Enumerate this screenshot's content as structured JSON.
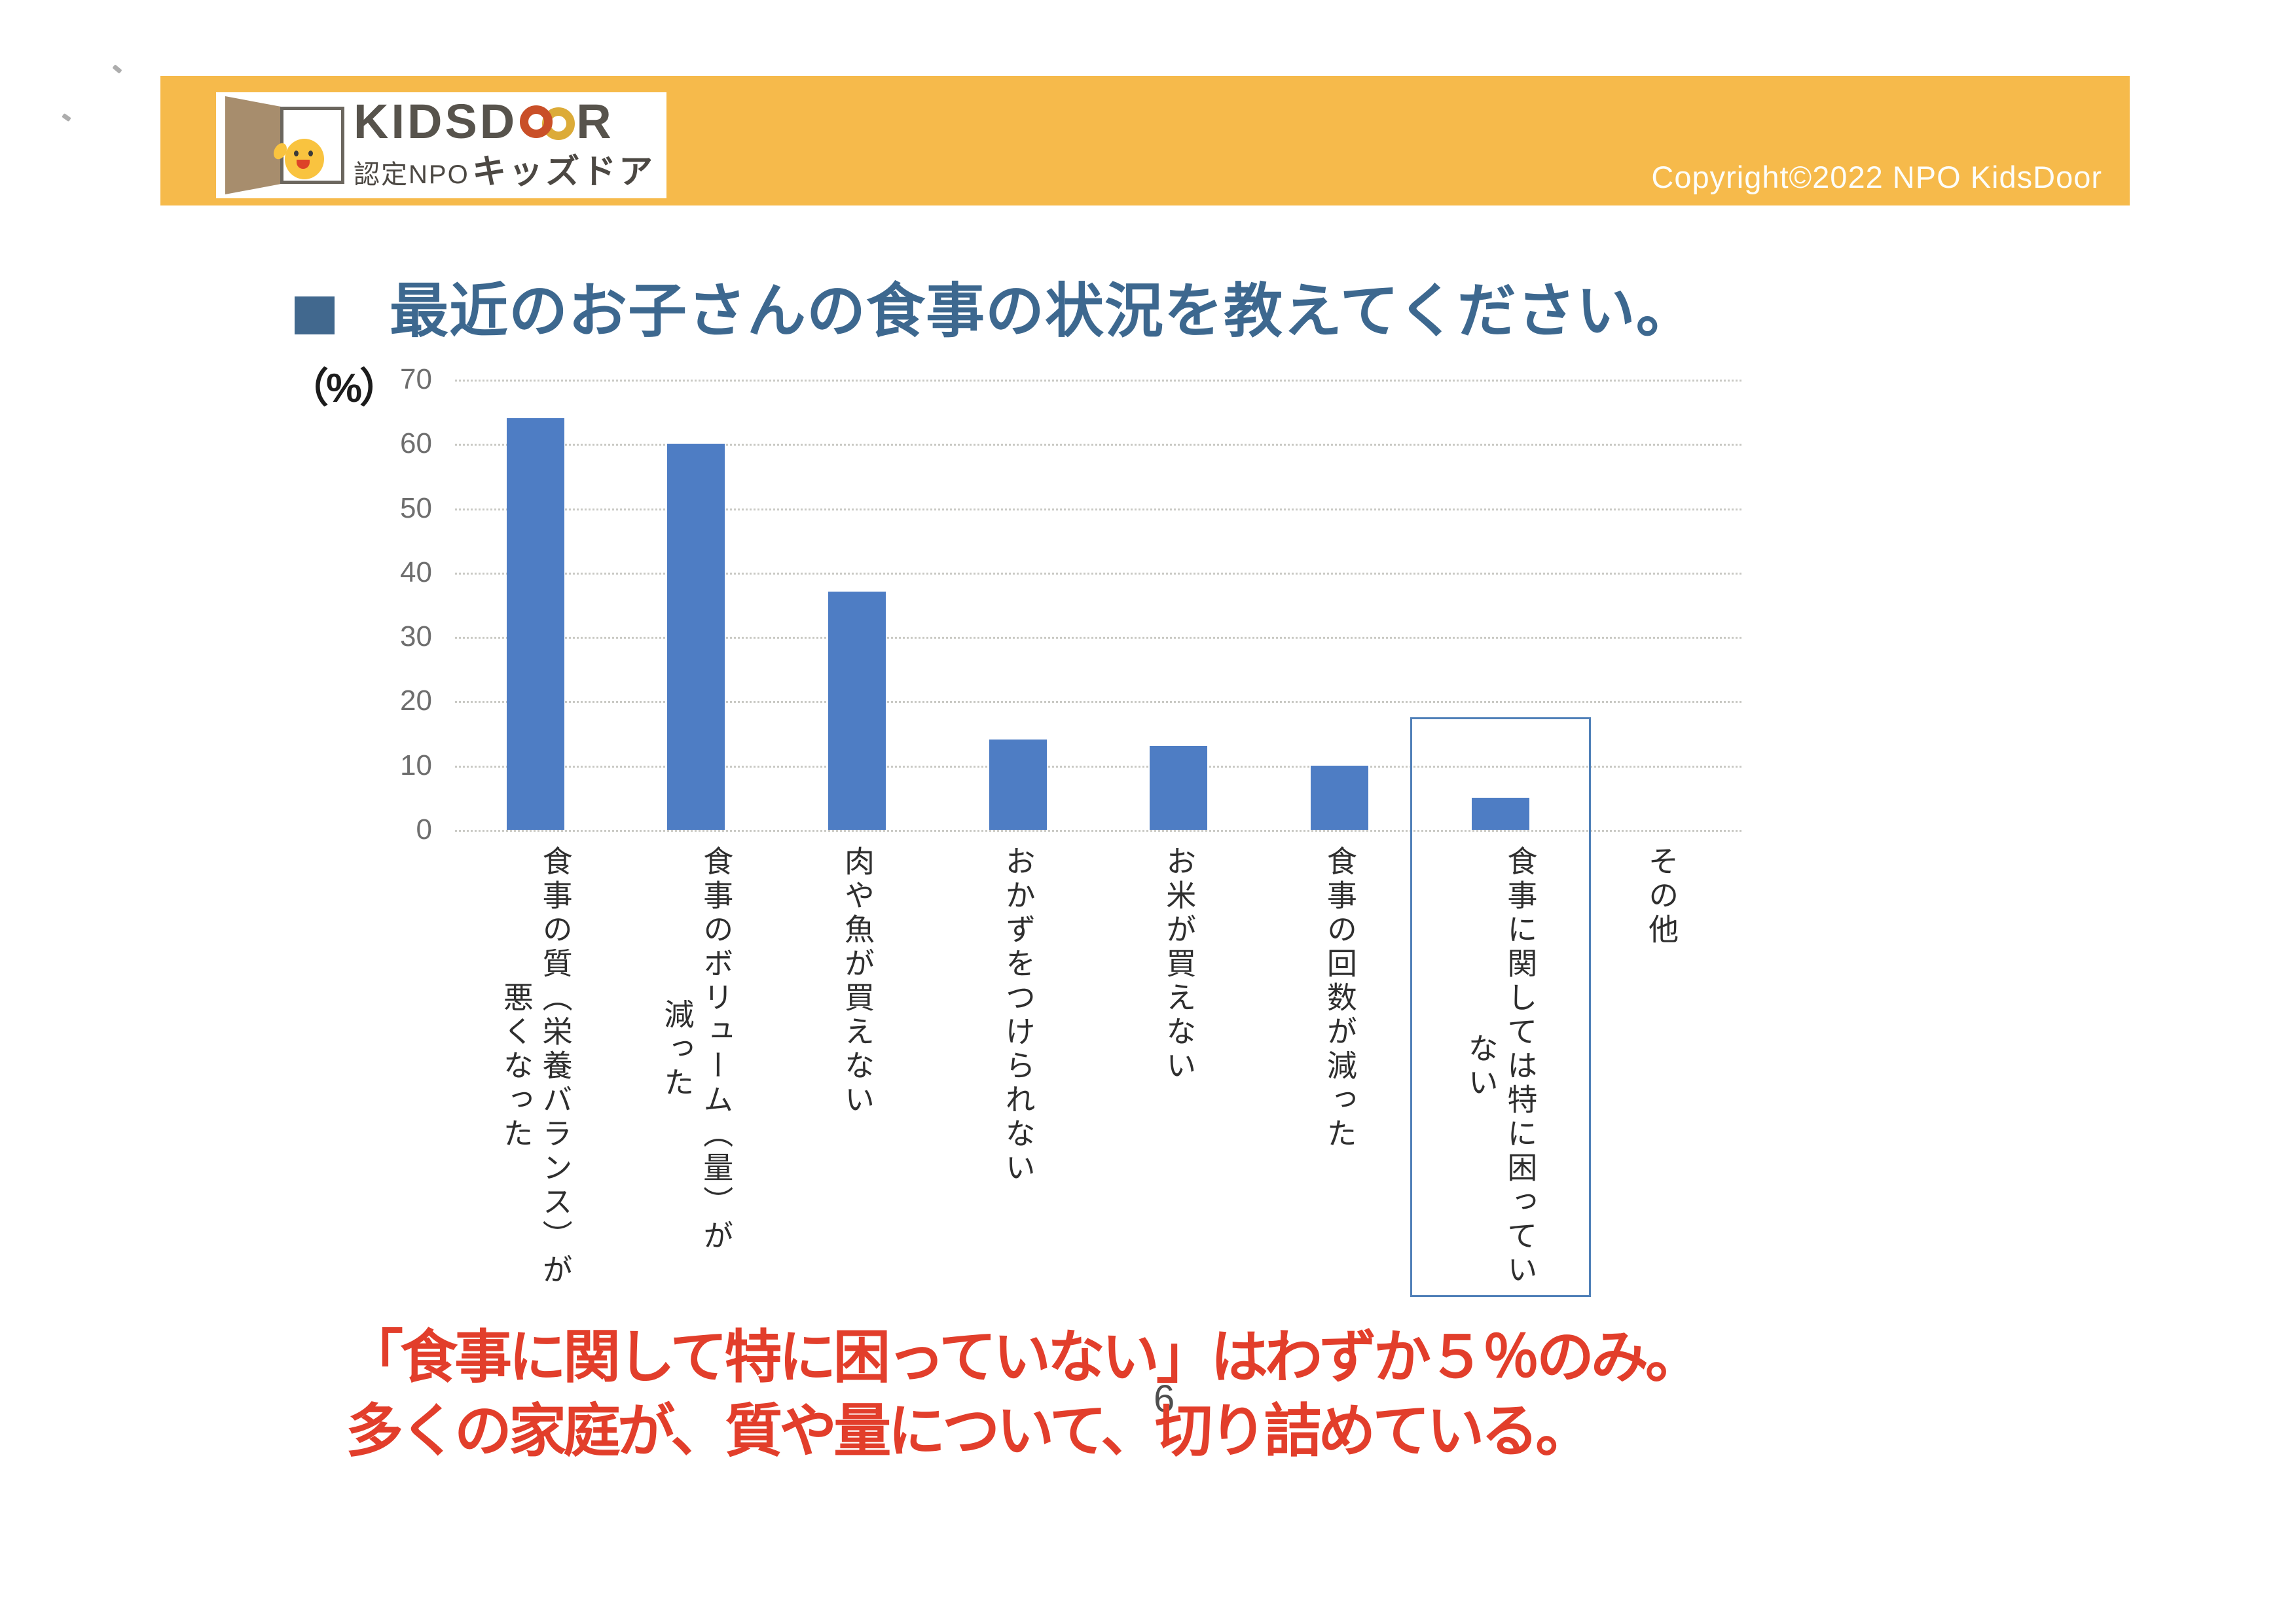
{
  "header": {
    "logo": {
      "brand_prefix": "KIDSD",
      "brand_suffix": "R",
      "subtitle_prefix": "認定NPO",
      "subtitle_name": "キッズドア"
    },
    "copyright": "Copyright©2022 NPO KidsDoor"
  },
  "title": {
    "text": "最近のお子さんの食事の状況を教えてください。"
  },
  "chart_data": {
    "type": "bar",
    "title": "最近のお子さんの食事の状況を教えてください。",
    "unit_label": "（%）",
    "categories": [
      "食事の質（栄養バランス）が\n悪くなった",
      "食事のボリューム（量）が\n減った",
      "肉や魚が買えない",
      "おかずをつけられない",
      "お米が買えない",
      "食事の回数が減った",
      "食事に関しては特に困ってい\nない",
      "その他"
    ],
    "values": [
      64,
      60,
      37,
      14,
      13,
      10,
      5,
      0
    ],
    "xlabel": "",
    "ylabel": "%",
    "ylim": [
      0,
      70
    ],
    "yticks": [
      0,
      10,
      20,
      30,
      40,
      50,
      60,
      70
    ],
    "grid": true,
    "gridline_style": "dotted",
    "legend": "none",
    "bar_color": "#4e7dc4",
    "highlight": {
      "category_index": 6,
      "top_value": 17.5,
      "box_color": "#5080b8"
    }
  },
  "annotation": {
    "line1": "「食事に関して特に困っていない」はわずか５％のみ。",
    "line2": "多くの家庭が、質や量について、切り詰めている。",
    "color": "#e23e2b"
  },
  "page_number": "6",
  "colors": {
    "header_bar": "#f6ba4b",
    "title_text": "#3d688f",
    "bar": "#4e7dc4",
    "annotation_red": "#e23e2b"
  }
}
